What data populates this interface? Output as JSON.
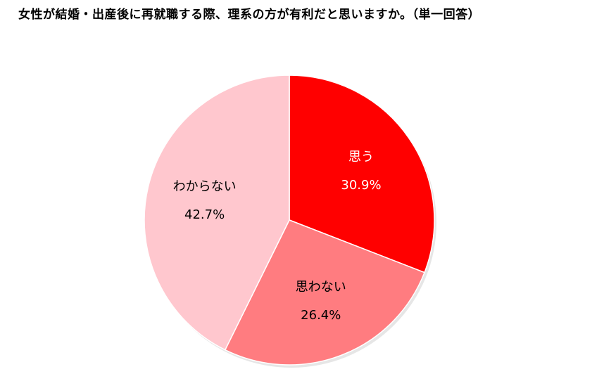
{
  "chart_data": {
    "type": "pie",
    "title": "女性が結婚・出産後に再就職する際、理系の方が有利だと思いますか。（単一回答）",
    "start_angle": "top",
    "direction": "clockwise",
    "slices": [
      {
        "label": "思う",
        "value": 30.9,
        "value_label": "30.9%",
        "color": "#FF0000",
        "text_color": "#FFFFFF"
      },
      {
        "label": "思わない",
        "value": 26.4,
        "value_label": "26.4%",
        "color": "#FF7C80",
        "text_color": "#000000"
      },
      {
        "label": "わからない",
        "value": 42.7,
        "value_label": "42.7%",
        "color": "#FFC7CE",
        "text_color": "#000000"
      }
    ],
    "slice_border_color": "#FFFFFF"
  }
}
